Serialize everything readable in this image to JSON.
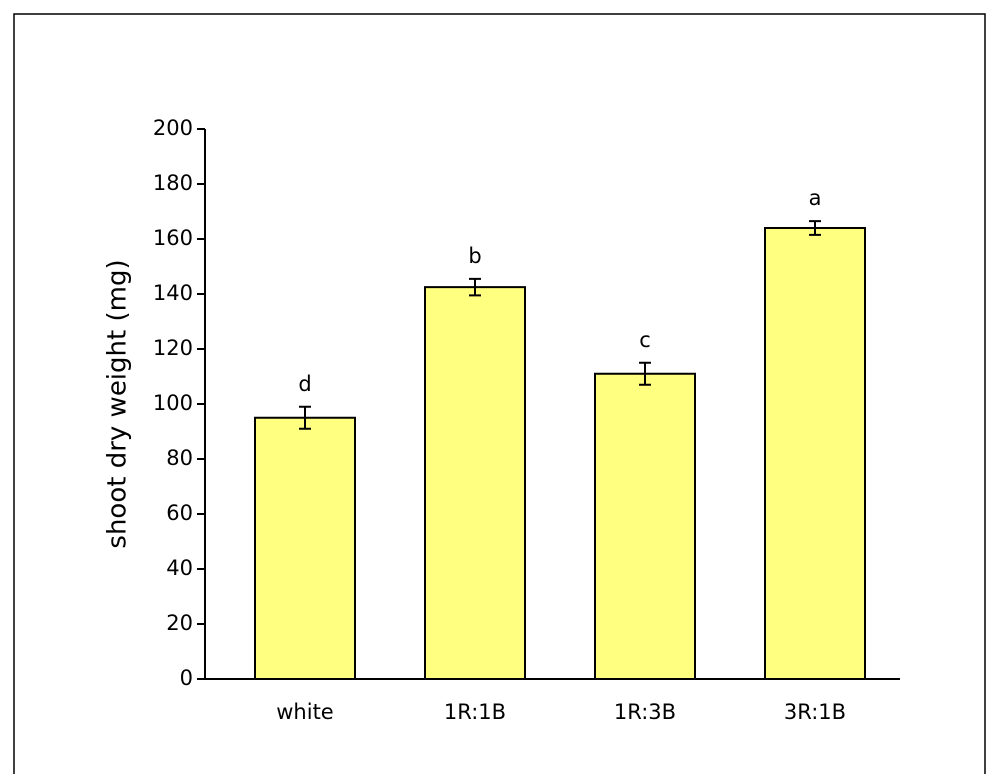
{
  "chart_data": {
    "type": "bar",
    "y_label": "shoot dry weight (mg)",
    "categories": [
      "white",
      "1R:1B",
      "1R:3B",
      "3R:1B"
    ],
    "values": [
      95,
      142.5,
      111,
      164
    ],
    "errors": [
      4,
      3,
      4,
      2.5
    ],
    "annotations": [
      "d",
      "b",
      "c",
      "a"
    ],
    "color": "#ffff80",
    "ylim": [
      0,
      200
    ],
    "yticks": [
      0,
      20,
      40,
      60,
      80,
      100,
      120,
      140,
      160,
      180,
      200
    ],
    "grid": false
  }
}
